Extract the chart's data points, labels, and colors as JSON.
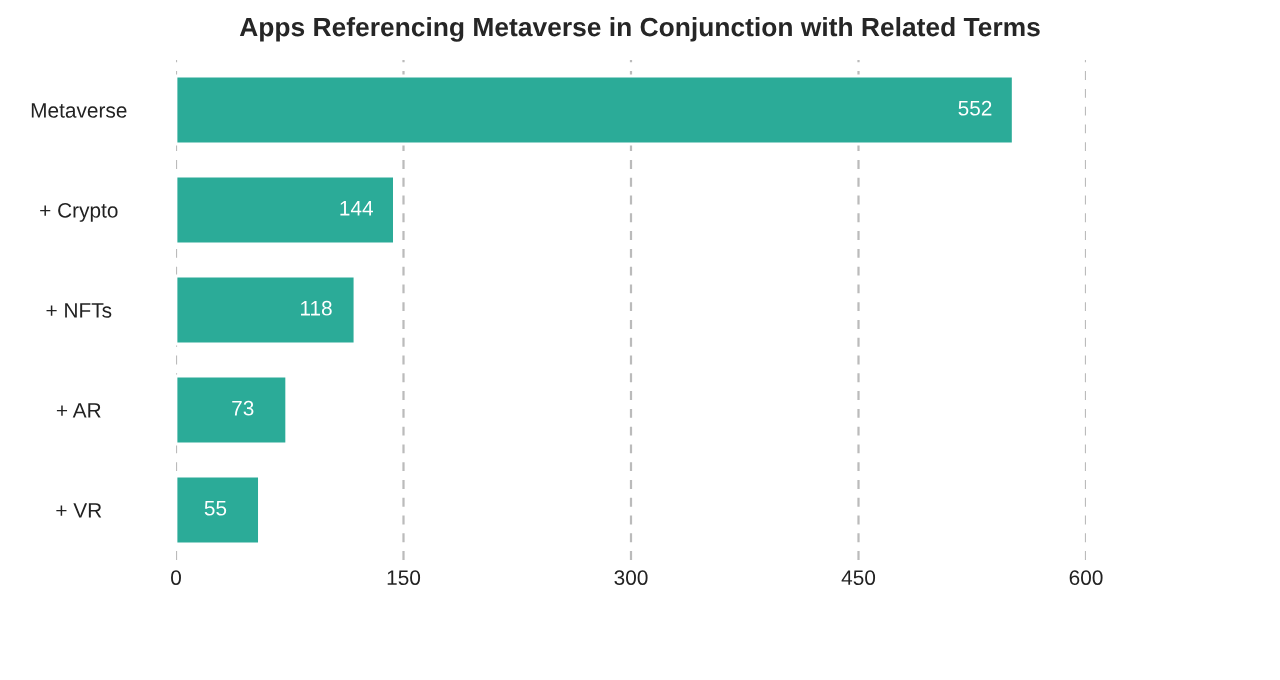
{
  "chart_data": {
    "type": "bar",
    "orientation": "horizontal",
    "title": "Apps Referencing Metaverse in Conjunction with Related Terms",
    "categories": [
      "Metaverse",
      "+ Crypto",
      "+ NFTs",
      "+ AR",
      "+ VR"
    ],
    "values": [
      552,
      144,
      118,
      73,
      55
    ],
    "color": "#2bab98",
    "xlim": [
      0,
      600
    ],
    "xticks": [
      0,
      150,
      300,
      450,
      600
    ],
    "grid": "x",
    "data_labels": true
  }
}
